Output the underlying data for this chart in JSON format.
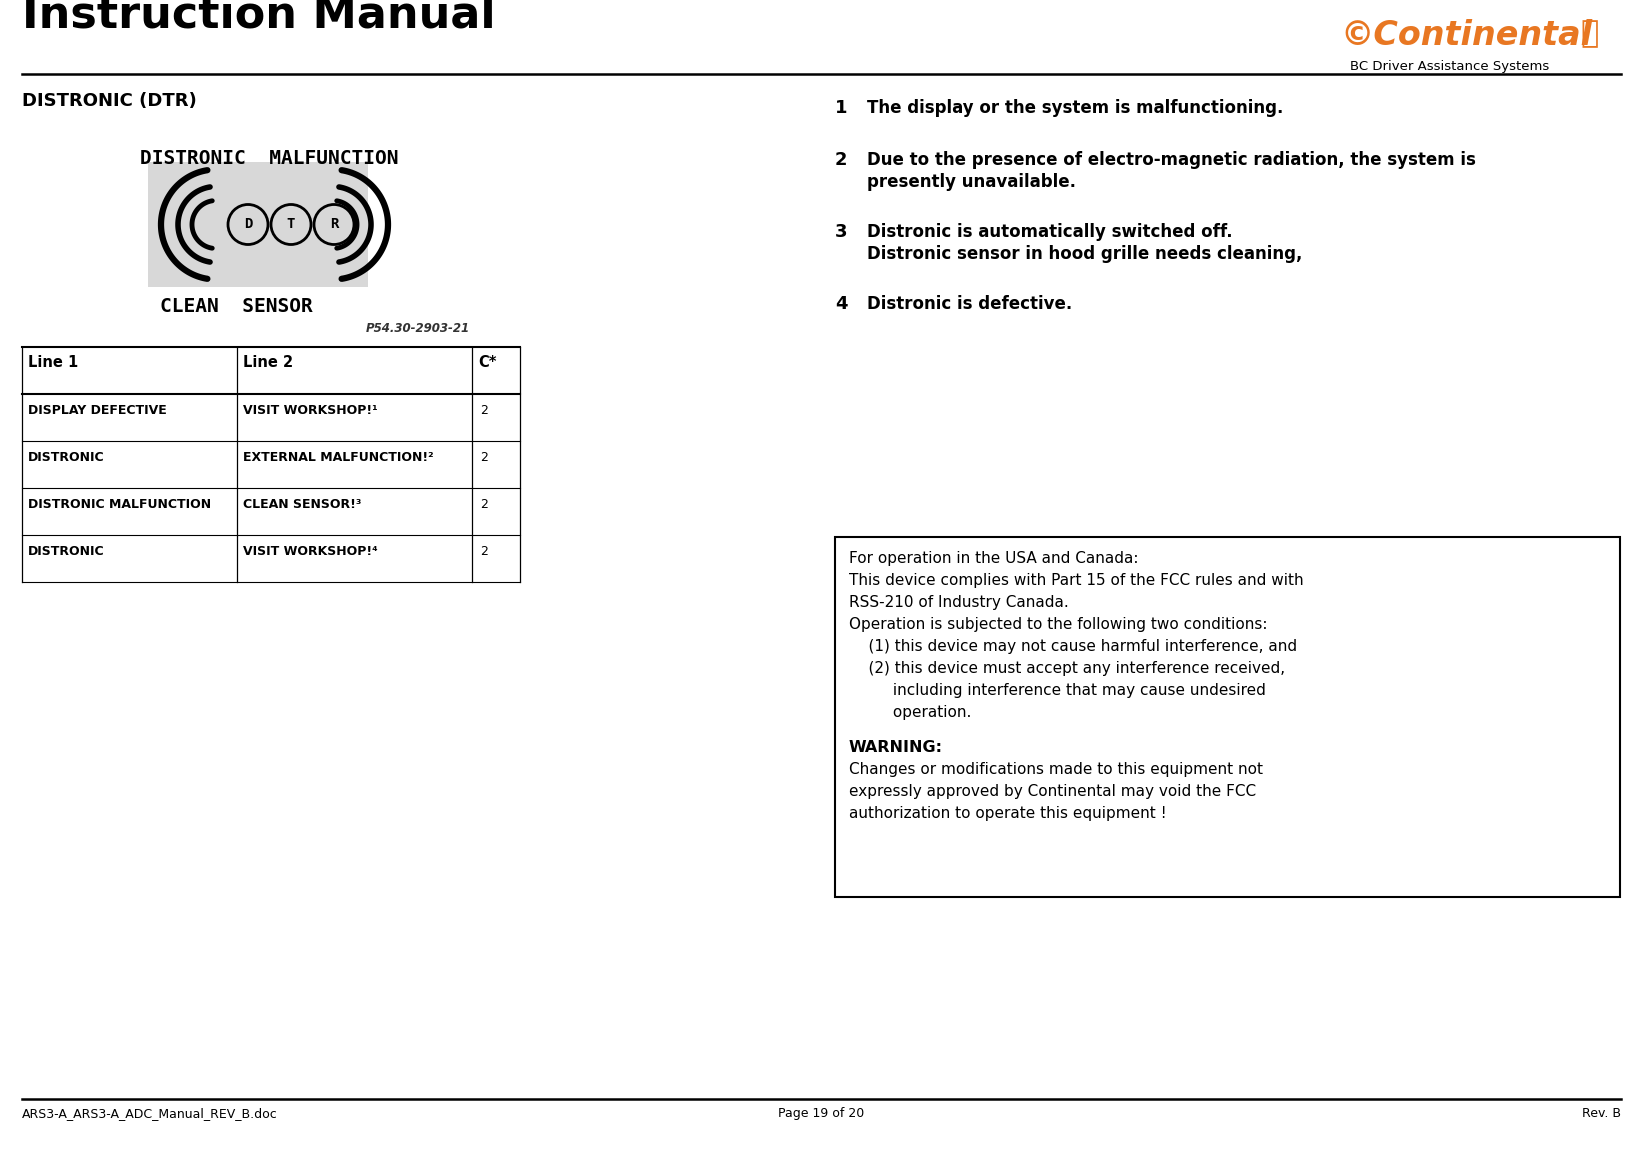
{
  "title": "Instruction Manual",
  "subtitle": "BC Driver Assistance Systems",
  "section_title": "DISTRONIC (DTR)",
  "display_text": "DISTRONIC  MALFUNCTION",
  "display_subtext": "CLEAN  SENSOR",
  "display_ref": "P54.30-2903-21",
  "table_headers": [
    "Line 1",
    "Line 2",
    "C*"
  ],
  "table_rows": [
    [
      "DISPLAY DEFECTIVE",
      "VISIT WORKSHOP!",
      "2",
      "1"
    ],
    [
      "DISTRONIC",
      "EXTERNAL MALFUNCTION!",
      "2",
      "2"
    ],
    [
      "DISTRONIC MALFUNCTION",
      "CLEAN SENSOR!",
      "2",
      "3"
    ],
    [
      "DISTRONIC",
      "VISIT WORKSHOP!",
      "2",
      "4"
    ]
  ],
  "items": [
    {
      "num": "1",
      "text": "The display or the system is malfunctioning.",
      "lines": 1
    },
    {
      "num": "2",
      "text": "Due to the presence of electro-magnetic radiation, the system is\n    presently unavailable.",
      "lines": 2
    },
    {
      "num": "3",
      "text": "Distronic is automatically switched off.\n    Distronic sensor in hood grille needs cleaning,",
      "lines": 2
    },
    {
      "num": "4",
      "text": "Distronic is defective.",
      "lines": 1
    }
  ],
  "warning_lines": [
    {
      "text": "For operation in the USA and Canada:",
      "bold": false,
      "indent": 0
    },
    {
      "text": "This device complies with Part 15 of the FCC rules and with",
      "bold": false,
      "indent": 0
    },
    {
      "text": "RSS-210 of Industry Canada.",
      "bold": false,
      "indent": 0
    },
    {
      "text": "Operation is subjected to the following two conditions:",
      "bold": false,
      "indent": 0
    },
    {
      "text": "    (1) this device may not cause harmful interference, and",
      "bold": false,
      "indent": 1
    },
    {
      "text": "    (2) this device must accept any interference received,",
      "bold": false,
      "indent": 1
    },
    {
      "text": "         including interference that may cause undesired",
      "bold": false,
      "indent": 2
    },
    {
      "text": "         operation.",
      "bold": false,
      "indent": 2
    },
    {
      "text": "",
      "bold": false,
      "indent": 0
    },
    {
      "text": "WARNING:",
      "bold": true,
      "indent": 0
    },
    {
      "text": "Changes or modifications made to this equipment not",
      "bold": false,
      "indent": 0
    },
    {
      "text": "expressly approved by Continental may void the FCC",
      "bold": false,
      "indent": 0
    },
    {
      "text": "authorization to operate this equipment !",
      "bold": false,
      "indent": 0
    }
  ],
  "footer_left": "ARS3-A_ARS3-A_ADC_Manual_REV_B.doc",
  "footer_center": "Page 19 of 20",
  "footer_right": "Rev. B",
  "continental_color": "#E87722",
  "bg_color": "#ffffff"
}
